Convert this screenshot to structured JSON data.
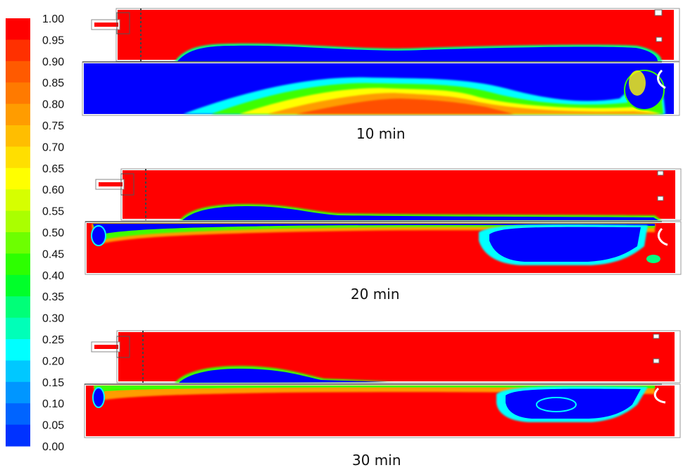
{
  "legend": {
    "ticks": [
      "1.00",
      "0.95",
      "0.90",
      "0.85",
      "0.80",
      "0.75",
      "0.70",
      "0.65",
      "0.60",
      "0.55",
      "0.50",
      "0.45",
      "0.40",
      "0.35",
      "0.30",
      "0.25",
      "0.20",
      "0.15",
      "0.10",
      "0.05",
      "0.00"
    ],
    "colors": [
      "#ff0000",
      "#ff3000",
      "#ff5a00",
      "#ff7a00",
      "#ff9c00",
      "#ffbe00",
      "#ffdf00",
      "#ffff00",
      "#d6ff00",
      "#aaff00",
      "#6dff00",
      "#2dff00",
      "#00ff2a",
      "#00ff78",
      "#00ffb8",
      "#00ffff",
      "#00c8ff",
      "#0096ff",
      "#0064ff",
      "#0032ff",
      "#0000ff"
    ]
  },
  "panels": [
    {
      "caption": "10 min"
    },
    {
      "caption": "20 min"
    },
    {
      "caption": "30 min"
    }
  ],
  "palette": {
    "high": "#ff0000",
    "mid_orange": "#ff8c00",
    "mid_yellow": "#ffff00",
    "mid_green": "#3cff00",
    "mid_cyan": "#00ffff",
    "low": "#0000ff"
  }
}
